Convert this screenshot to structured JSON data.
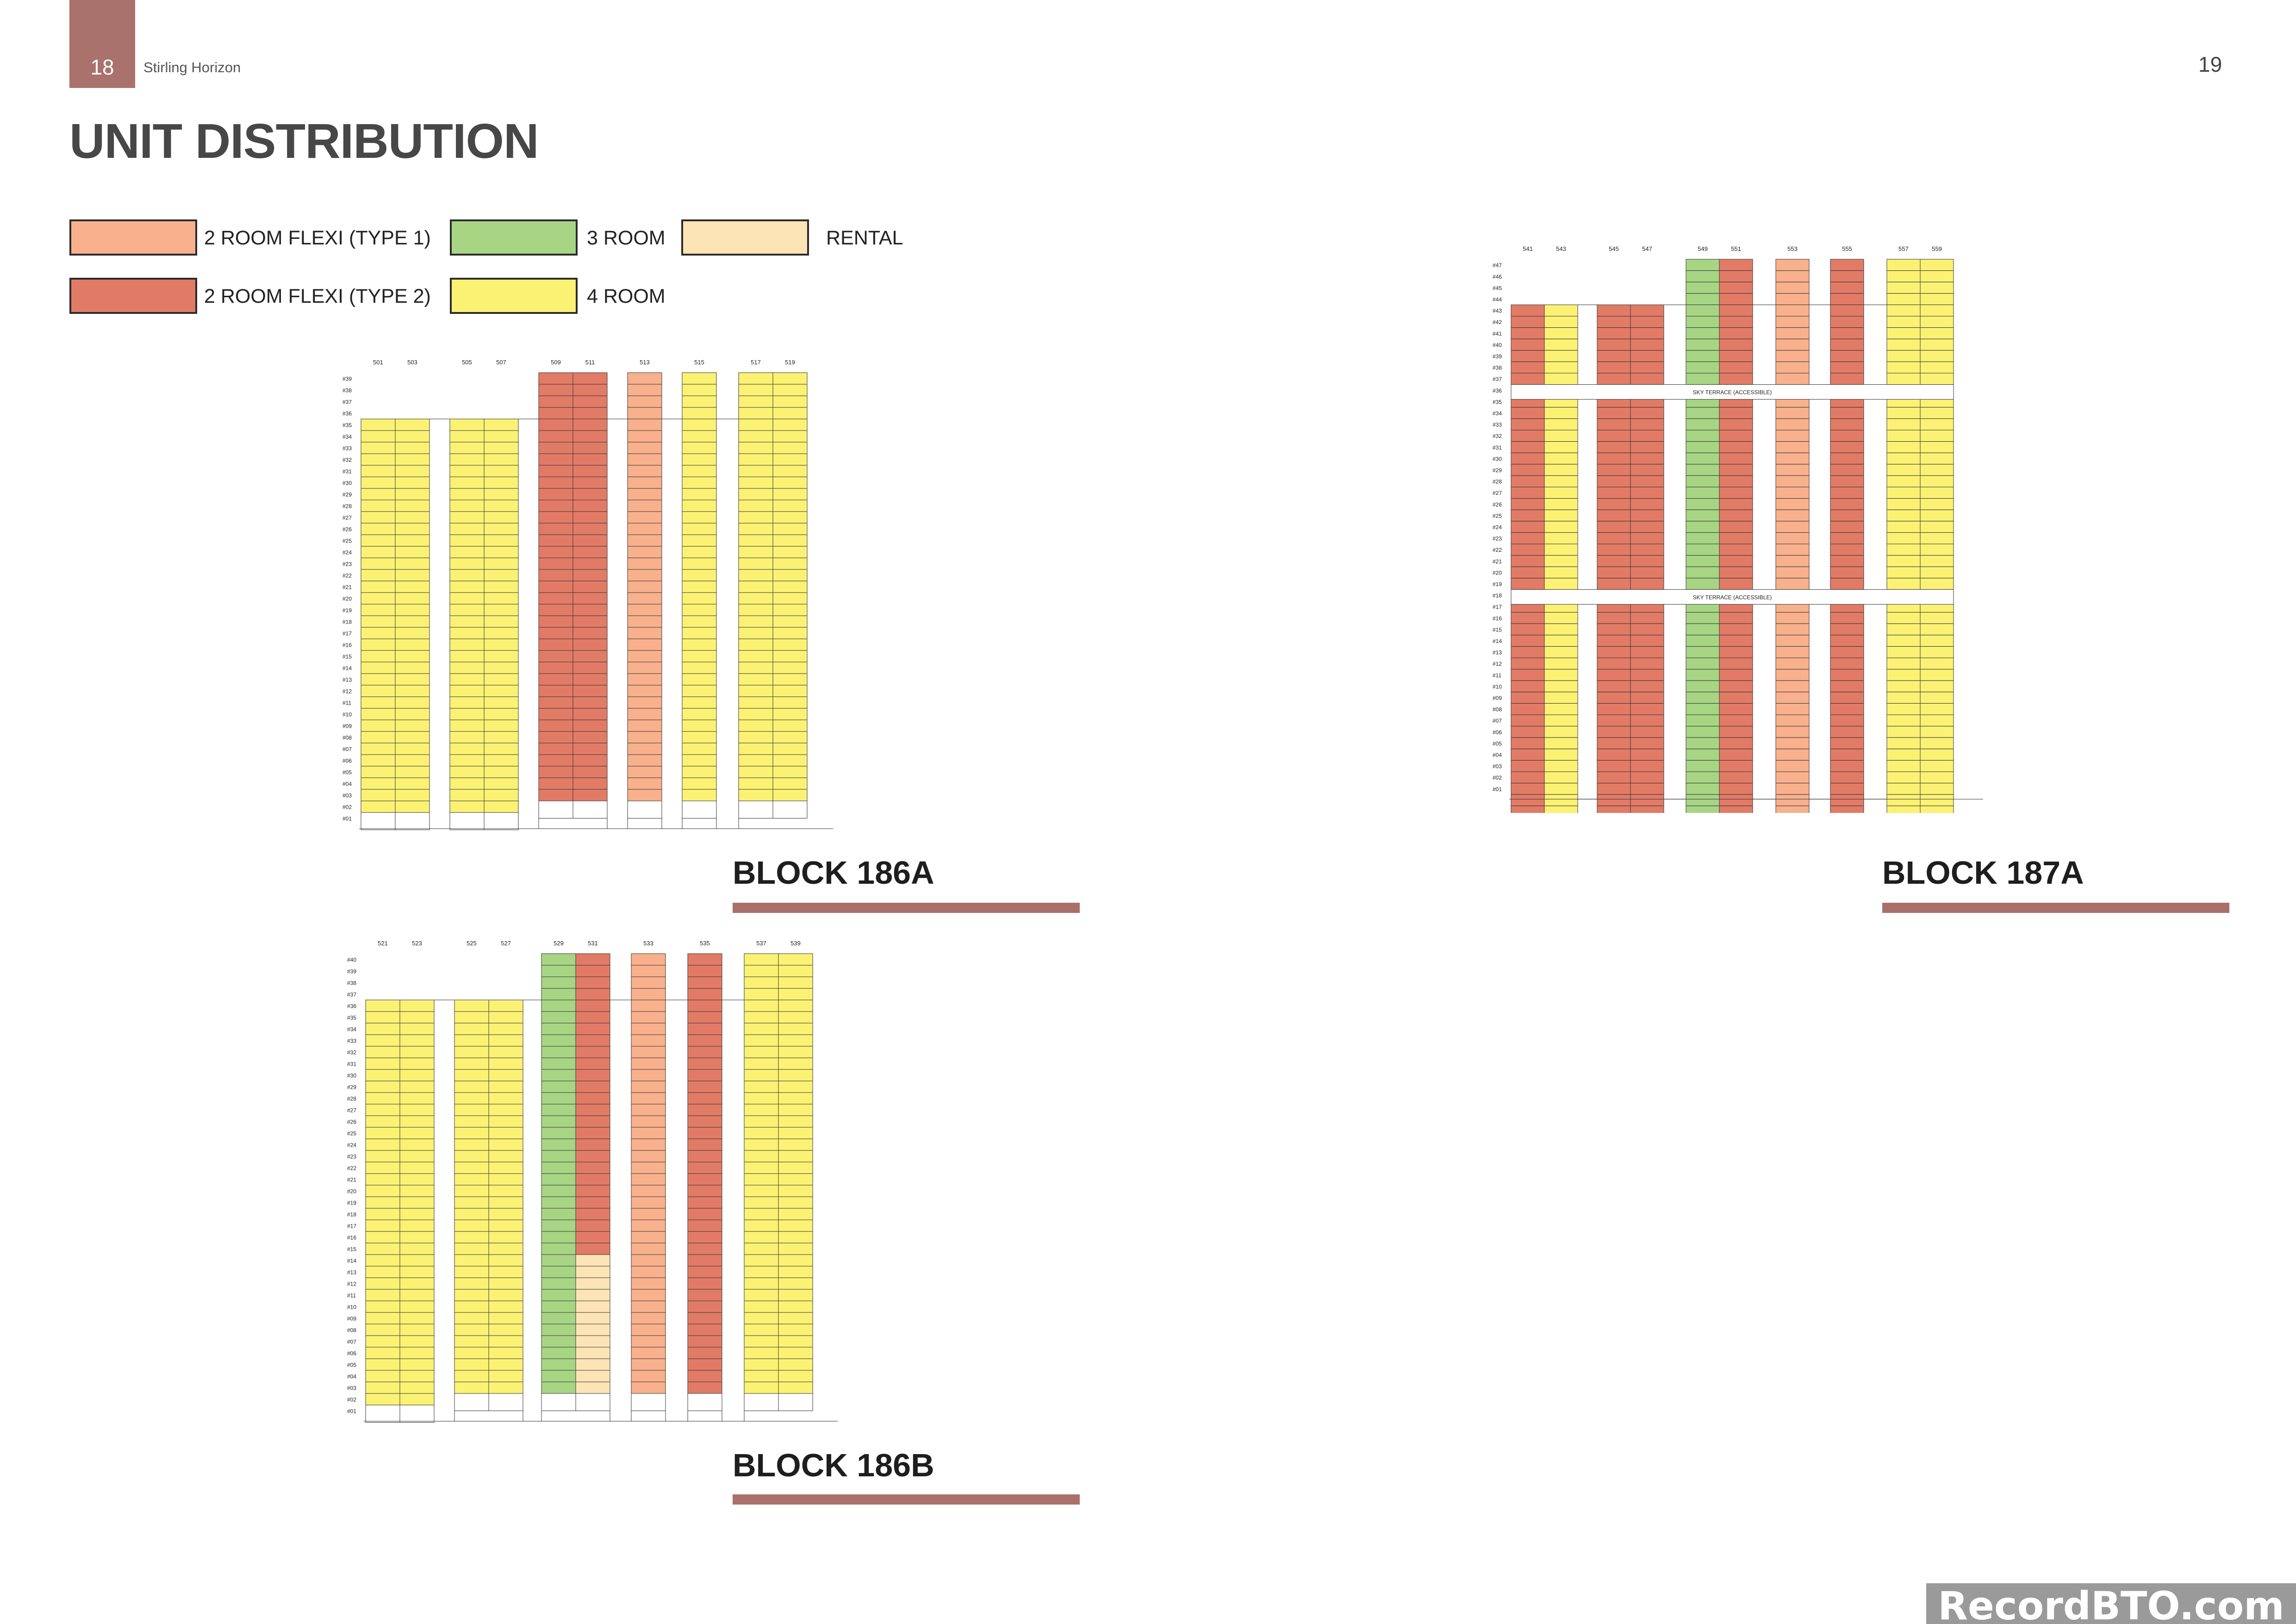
{
  "header": {
    "page_left": "18",
    "project": "Stirling Horizon",
    "page_right": "19"
  },
  "title": "UNIT DISTRIBUTION",
  "colors": {
    "flexi1": "#f8b18c",
    "flexi2": "#e27b66",
    "room3": "#a7d584",
    "room4": "#fbf274",
    "rental": "#fde4b5",
    "accent": "#ab6f69"
  },
  "legend": [
    {
      "key": "flexi1",
      "label": "2 ROOM FLEXI (TYPE 1)"
    },
    {
      "key": "flexi2",
      "label": "2 ROOM FLEXI (TYPE 2)"
    },
    {
      "key": "room3",
      "label": "3 ROOM"
    },
    {
      "key": "room4",
      "label": "4 ROOM"
    },
    {
      "key": "rental",
      "label": "RENTAL"
    }
  ],
  "blocks": [
    {
      "name": "BLOCK 186A",
      "units": [
        "501",
        "503",
        "505",
        "507",
        "509",
        "511",
        "513",
        "515",
        "517",
        "519"
      ],
      "floors": [
        "#39",
        "#38",
        "#37",
        "#36",
        "#35",
        "#34",
        "#33",
        "#32",
        "#31",
        "#30",
        "#29",
        "#28",
        "#27",
        "#26",
        "#25",
        "#24",
        "#23",
        "#22",
        "#21",
        "#20",
        "#19",
        "#18",
        "#17",
        "#16",
        "#15",
        "#14",
        "#13",
        "#12",
        "#11",
        "#10",
        "#09",
        "#08",
        "#07",
        "#06",
        "#05",
        "#04",
        "#03",
        "#02",
        "#01"
      ],
      "sky_terraces": []
    },
    {
      "name": "BLOCK 186B",
      "units": [
        "521",
        "523",
        "525",
        "527",
        "529",
        "531",
        "533",
        "535",
        "537",
        "539"
      ],
      "floors": [
        "#40",
        "#39",
        "#38",
        "#37",
        "#36",
        "#35",
        "#34",
        "#33",
        "#32",
        "#31",
        "#30",
        "#29",
        "#28",
        "#27",
        "#26",
        "#25",
        "#24",
        "#23",
        "#22",
        "#21",
        "#20",
        "#19",
        "#18",
        "#17",
        "#16",
        "#15",
        "#14",
        "#13",
        "#12",
        "#11",
        "#10",
        "#09",
        "#08",
        "#07",
        "#06",
        "#05",
        "#04",
        "#03",
        "#02",
        "#01"
      ],
      "sky_terraces": []
    },
    {
      "name": "BLOCK 187A",
      "units": [
        "541",
        "543",
        "545",
        "547",
        "549",
        "551",
        "553",
        "555",
        "557",
        "559"
      ],
      "floors": [
        "#47",
        "#46",
        "#45",
        "#44",
        "#43",
        "#42",
        "#41",
        "#40",
        "#39",
        "#38",
        "#37",
        "#36",
        "#35",
        "#34",
        "#33",
        "#32",
        "#31",
        "#30",
        "#29",
        "#28",
        "#27",
        "#26",
        "#25",
        "#24",
        "#23",
        "#22",
        "#21",
        "#20",
        "#19",
        "#18",
        "#17",
        "#16",
        "#15",
        "#14",
        "#13",
        "#12",
        "#11",
        "#10",
        "#09",
        "#08",
        "#07",
        "#06",
        "#05",
        "#04",
        "#03",
        "#02",
        "#01"
      ],
      "sky_terraces": [
        "SKY TERRACE (ACCESSIBLE)",
        "SKY TERRACE (ACCESSIBLE)"
      ]
    }
  ],
  "watermark": "RecordBTO.com"
}
